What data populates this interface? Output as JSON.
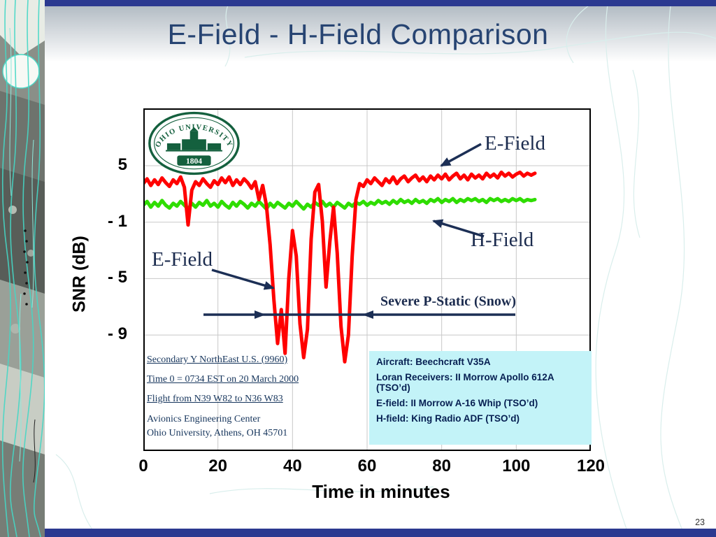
{
  "slide": {
    "title": "E-Field - H-Field Comparison",
    "page_number": "23"
  },
  "logo": {
    "institution": "OHIO UNIVERSITY",
    "year": "1804"
  },
  "annotations": {
    "e_field_top": "E-Field",
    "h_field": "H-Field",
    "e_field_left": "E-Field",
    "p_static": "Severe P-Static (Snow)"
  },
  "notes": {
    "lines": [
      "Secondary Y NorthEast U.S. (9960)",
      "Time 0 = 0734 EST on 20 March 2000",
      "Flight from N39 W82 to N36 W83",
      "Avionics Engineering Center",
      "Ohio University, Athens, OH 45701"
    ]
  },
  "equipment_box": {
    "background": "#c3f3f8",
    "lines": [
      "Aircraft: Beechcraft V35A",
      "Loran Receivers: II Morrow Apollo 612A (TSO’d)",
      "E-field: II Morrow A-16 Whip (TSO’d)",
      "H-field: King Radio ADF (TSO’d)"
    ]
  },
  "colors": {
    "e_field": "#ff0000",
    "h_field": "#2fdd00",
    "annotation_ink": "#1c2f55",
    "accent_bar": "#2b3990",
    "title_text": "#274472",
    "logo_green": "#14603e"
  },
  "chart_data": {
    "type": "line",
    "title": "",
    "xlabel": "Time in minutes",
    "ylabel": "SNR (dB)",
    "xlim": [
      0,
      120
    ],
    "xticks": [
      0,
      20,
      40,
      60,
      80,
      100,
      120
    ],
    "ytick_labels": [
      "5",
      "- 1",
      "- 5",
      "- 9"
    ],
    "ytick_values": [
      5,
      -1,
      -5,
      -9
    ],
    "grid": true,
    "legend_position": "annotated-arrows",
    "series": [
      {
        "name": "E-Field",
        "color": "#ff0000",
        "x0": 0,
        "dx": 1,
        "values": [
          3.1,
          3.6,
          2.9,
          3.5,
          3.0,
          3.7,
          3.2,
          2.8,
          3.5,
          3.1,
          3.8,
          2.7,
          -1.2,
          2.4,
          3.3,
          2.9,
          3.6,
          3.1,
          2.7,
          3.4,
          3.0,
          3.7,
          3.2,
          3.8,
          2.9,
          3.5,
          3.0,
          3.6,
          3.2,
          2.6,
          3.3,
          1.4,
          2.9,
          0.8,
          -2.6,
          -6.5,
          -9.6,
          -7.2,
          -10.3,
          -5.0,
          -1.6,
          -3.4,
          -8.2,
          -10.6,
          -8.6,
          -2.2,
          2.2,
          3.0,
          -0.9,
          -5.6,
          -2.4,
          0.6,
          -3.2,
          -8.4,
          -10.9,
          -9.0,
          -3.4,
          1.4,
          3.1,
          2.8,
          3.5,
          3.1,
          3.7,
          3.3,
          2.9,
          3.6,
          3.2,
          3.8,
          3.1,
          3.6,
          3.9,
          3.3,
          3.7,
          4.0,
          3.4,
          3.8,
          3.3,
          3.9,
          3.5,
          4.0,
          3.6,
          4.1,
          3.5,
          3.9,
          4.2,
          3.6,
          4.0,
          3.5,
          4.1,
          3.7,
          4.0,
          3.6,
          4.2,
          3.8,
          4.1,
          3.7,
          4.3,
          3.9,
          4.2,
          3.8,
          4.1,
          4.3,
          3.9,
          4.2,
          4.0,
          4.2
        ]
      },
      {
        "name": "H-Field",
        "color": "#2fdd00",
        "x0": 0,
        "dx": 1,
        "values": [
          0.8,
          1.2,
          0.6,
          1.1,
          0.7,
          1.3,
          0.8,
          0.5,
          1.0,
          0.7,
          1.2,
          0.8,
          0.4,
          1.0,
          0.6,
          1.1,
          0.8,
          1.3,
          0.7,
          1.0,
          0.6,
          1.2,
          0.8,
          0.5,
          1.1,
          0.7,
          1.2,
          0.9,
          0.5,
          1.0,
          0.7,
          1.2,
          0.8,
          0.4,
          1.0,
          0.6,
          1.1,
          0.8,
          0.5,
          1.0,
          0.7,
          1.2,
          0.8,
          0.4,
          0.9,
          0.6,
          1.1,
          0.8,
          1.2,
          0.7,
          1.0,
          0.6,
          1.1,
          0.8,
          0.5,
          1.0,
          0.7,
          1.1,
          0.9,
          1.2,
          0.8,
          1.1,
          0.9,
          1.3,
          1.0,
          1.2,
          0.9,
          1.3,
          1.0,
          1.4,
          1.1,
          1.3,
          1.0,
          1.4,
          1.1,
          1.3,
          1.0,
          1.4,
          1.2,
          1.5,
          1.1,
          1.4,
          1.2,
          1.5,
          1.1,
          1.4,
          1.2,
          1.5,
          1.3,
          1.5,
          1.2,
          1.4,
          1.1,
          1.5,
          1.3,
          1.5,
          1.2,
          1.4,
          1.2,
          1.5,
          1.3,
          1.5,
          1.2,
          1.4,
          1.3,
          1.4
        ]
      }
    ]
  }
}
